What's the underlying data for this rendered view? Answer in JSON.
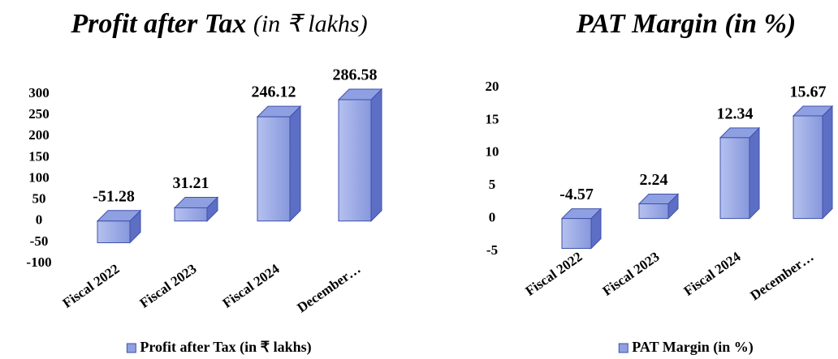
{
  "chart_data": [
    {
      "type": "bar3d",
      "title": "Profit after Tax",
      "title_unit": "(in ₹ lakhs)",
      "categories": [
        "Fiscal 2022",
        "Fiscal 2023",
        "Fiscal 2024",
        "December…"
      ],
      "series": [
        {
          "name": "Profit after Tax (in ₹ lakhs)",
          "color": "#8fa0e2",
          "values": [
            -51.28,
            31.21,
            246.12,
            286.58
          ]
        }
      ],
      "ylim": [
        -100,
        300
      ],
      "yticks": [
        300,
        250,
        200,
        150,
        100,
        50,
        0,
        -50,
        -100
      ],
      "legend": "bottom"
    },
    {
      "type": "bar3d",
      "title": "PAT Margin (in %)",
      "categories": [
        "Fiscal 2022",
        "Fiscal 2023",
        "Fiscal 2024",
        "December…"
      ],
      "series": [
        {
          "name": "PAT Margin (in %)",
          "color": "#8fa0e2",
          "values": [
            -4.57,
            2.24,
            12.34,
            15.67
          ]
        }
      ],
      "ylim": [
        -5,
        20
      ],
      "yticks": [
        20,
        15,
        10,
        5,
        0,
        -5
      ],
      "legend": "bottom"
    }
  ]
}
